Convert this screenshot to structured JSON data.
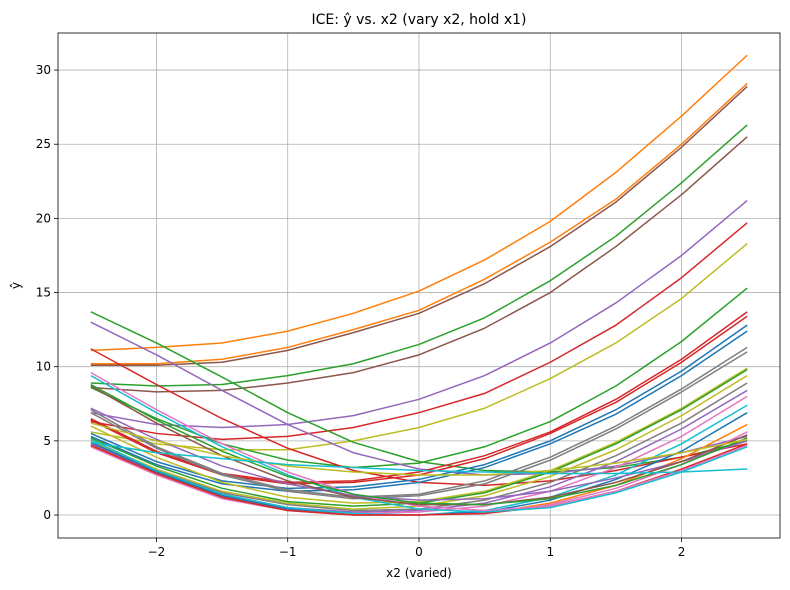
{
  "chart_data": {
    "type": "line",
    "title": "ICE: ŷ vs. x2 (vary x2, hold x1)",
    "xlabel": "x2 (varied)",
    "ylabel": "ŷ",
    "xlim": [
      -2.75,
      2.75
    ],
    "ylim": [
      -1.55,
      32.5
    ],
    "grid": true,
    "legend": "none",
    "xticks": [
      -2,
      -1,
      0,
      1,
      2
    ],
    "xtick_labels": [
      "−2",
      "−1",
      "0",
      "1",
      "2"
    ],
    "yticks": [
      0,
      5,
      10,
      15,
      20,
      25,
      30
    ],
    "ytick_labels": [
      "0",
      "5",
      "10",
      "15",
      "20",
      "25",
      "30"
    ],
    "x": [
      -2.5,
      -2.0,
      -1.5,
      -1.0,
      -0.5,
      0.0,
      0.5,
      1.0,
      1.5,
      2.0,
      2.5
    ],
    "series": [
      {
        "color": "#ff7f0e",
        "values": [
          11.1,
          11.3,
          11.6,
          12.4,
          13.6,
          15.1,
          17.2,
          19.8,
          23.1,
          26.9,
          31.0
        ]
      },
      {
        "color": "#ff7f0e",
        "values": [
          10.2,
          10.2,
          10.5,
          11.3,
          12.5,
          13.8,
          15.9,
          18.4,
          21.3,
          25.0,
          29.1
        ]
      },
      {
        "color": "#8c564b",
        "values": [
          10.1,
          10.1,
          10.3,
          11.1,
          12.3,
          13.6,
          15.6,
          18.1,
          21.1,
          24.8,
          28.9
        ]
      },
      {
        "color": "#2ca02c",
        "values": [
          8.9,
          8.7,
          8.8,
          9.4,
          10.2,
          11.5,
          13.3,
          15.8,
          18.8,
          22.4,
          26.3
        ]
      },
      {
        "color": "#8c564b",
        "values": [
          8.6,
          8.3,
          8.4,
          8.9,
          9.6,
          10.8,
          12.6,
          15.0,
          18.1,
          21.6,
          25.5
        ]
      },
      {
        "color": "#9467bd",
        "values": [
          6.9,
          6.1,
          5.9,
          6.1,
          6.7,
          7.8,
          9.4,
          11.6,
          14.3,
          17.5,
          21.2
        ]
      },
      {
        "color": "#d62728",
        "values": [
          6.3,
          5.5,
          5.1,
          5.3,
          5.9,
          6.9,
          8.2,
          10.3,
          12.8,
          16.0,
          19.7
        ]
      },
      {
        "color": "#bcbd22",
        "values": [
          5.6,
          4.8,
          4.4,
          4.4,
          5.0,
          5.9,
          7.2,
          9.2,
          11.6,
          14.6,
          18.3
        ]
      },
      {
        "color": "#2ca02c",
        "values": [
          8.6,
          6.5,
          4.8,
          3.7,
          3.2,
          3.5,
          4.6,
          6.3,
          8.7,
          11.7,
          15.3
        ]
      },
      {
        "color": "#2ca02c",
        "values": [
          13.7,
          11.6,
          9.3,
          6.9,
          4.9,
          3.6,
          3.0,
          2.9,
          3.2,
          3.9,
          5.0
        ]
      },
      {
        "color": "#9467bd",
        "values": [
          13.0,
          10.8,
          8.4,
          6.1,
          4.2,
          3.1,
          2.7,
          2.8,
          3.3,
          4.2,
          5.3
        ]
      },
      {
        "color": "#d62728",
        "values": [
          11.2,
          8.8,
          6.5,
          4.5,
          3.0,
          2.2,
          2.0,
          2.3,
          3.0,
          3.9,
          4.8
        ]
      },
      {
        "color": "#d62728",
        "values": [
          6.5,
          4.3,
          2.8,
          2.2,
          2.3,
          2.9,
          4.0,
          5.6,
          7.8,
          10.5,
          13.7
        ]
      },
      {
        "color": "#d62728",
        "values": [
          6.4,
          4.2,
          2.7,
          2.1,
          2.2,
          2.7,
          3.8,
          5.5,
          7.6,
          10.3,
          13.4
        ]
      },
      {
        "color": "#1f77b4",
        "values": [
          5.5,
          3.6,
          2.3,
          1.8,
          1.9,
          2.4,
          3.4,
          5.0,
          7.1,
          9.7,
          12.8
        ]
      },
      {
        "color": "#1f77b4",
        "values": [
          5.3,
          3.4,
          2.1,
          1.6,
          1.7,
          2.2,
          3.2,
          4.8,
          6.8,
          9.4,
          12.4
        ]
      },
      {
        "color": "#7f7f7f",
        "values": [
          7.1,
          4.6,
          2.8,
          1.7,
          1.2,
          1.4,
          2.3,
          3.9,
          6.0,
          8.5,
          11.3
        ]
      },
      {
        "color": "#7f7f7f",
        "values": [
          6.9,
          4.5,
          2.7,
          1.6,
          1.1,
          1.3,
          2.1,
          3.7,
          5.8,
          8.3,
          11.0
        ]
      },
      {
        "color": "#bcbd22",
        "values": [
          6.0,
          3.9,
          2.2,
          1.2,
          0.8,
          0.9,
          1.6,
          3.0,
          4.9,
          7.2,
          9.9
        ]
      },
      {
        "color": "#2ca02c",
        "values": [
          5.2,
          3.3,
          1.8,
          0.9,
          0.6,
          0.8,
          1.5,
          2.9,
          4.8,
          7.1,
          9.8
        ]
      },
      {
        "color": "#bcbd22",
        "values": [
          5.0,
          3.1,
          1.6,
          0.8,
          0.4,
          0.6,
          1.3,
          2.6,
          4.4,
          6.7,
          9.4
        ]
      },
      {
        "color": "#7f7f7f",
        "values": [
          4.9,
          3.0,
          1.5,
          0.7,
          0.3,
          0.4,
          1.0,
          2.2,
          4.0,
          6.2,
          8.9
        ]
      },
      {
        "color": "#9467bd",
        "values": [
          4.8,
          2.9,
          1.4,
          0.5,
          0.2,
          0.3,
          0.8,
          1.9,
          3.6,
          5.8,
          8.4
        ]
      },
      {
        "color": "#e377c2",
        "values": [
          4.7,
          2.8,
          1.3,
          0.4,
          0.1,
          0.2,
          0.6,
          1.6,
          3.2,
          5.3,
          8.0
        ]
      },
      {
        "color": "#17becf",
        "values": [
          5.1,
          3.0,
          1.4,
          0.5,
          0.1,
          0.0,
          0.3,
          1.2,
          2.7,
          4.8,
          7.4
        ]
      },
      {
        "color": "#1f77b4",
        "values": [
          4.9,
          2.9,
          1.3,
          0.4,
          0.0,
          0.0,
          0.2,
          1.0,
          2.4,
          4.3,
          6.9
        ]
      },
      {
        "color": "#ff7f0e",
        "values": [
          4.7,
          2.8,
          1.2,
          0.3,
          0.0,
          0.0,
          0.1,
          0.8,
          2.0,
          3.8,
          6.1
        ]
      },
      {
        "color": "#e377c2",
        "values": [
          4.6,
          2.7,
          1.1,
          0.3,
          0.0,
          0.0,
          0.1,
          0.7,
          1.8,
          3.4,
          5.6
        ]
      },
      {
        "color": "#d62728",
        "values": [
          4.7,
          2.8,
          1.2,
          0.3,
          0.0,
          0.0,
          0.1,
          0.6,
          1.6,
          3.1,
          4.8
        ]
      },
      {
        "color": "#e377c2",
        "values": [
          9.6,
          7.1,
          4.8,
          2.9,
          1.4,
          0.6,
          0.3,
          0.6,
          1.6,
          3.0,
          4.7
        ]
      },
      {
        "color": "#17becf",
        "values": [
          9.4,
          6.9,
          4.6,
          2.7,
          1.2,
          0.4,
          0.2,
          0.5,
          1.5,
          2.9,
          4.6
        ]
      },
      {
        "color": "#9467bd",
        "values": [
          7.2,
          5.1,
          3.3,
          2.1,
          1.3,
          1.0,
          1.1,
          1.6,
          2.5,
          3.6,
          5.0
        ]
      },
      {
        "color": "#8c564b",
        "values": [
          8.7,
          6.2,
          4.0,
          2.3,
          1.2,
          0.7,
          0.7,
          1.2,
          2.2,
          3.6,
          5.4
        ]
      },
      {
        "color": "#2ca02c",
        "values": [
          8.8,
          6.4,
          4.3,
          2.6,
          1.4,
          0.8,
          0.7,
          1.1,
          2.0,
          3.4,
          5.2
        ]
      },
      {
        "color": "#bcbd22",
        "values": [
          6.2,
          5.0,
          4.0,
          3.3,
          2.9,
          2.7,
          2.7,
          3.0,
          3.5,
          4.2,
          5.1
        ]
      },
      {
        "color": "#17becf",
        "values": [
          4.9,
          4.2,
          3.8,
          3.4,
          3.2,
          3.0,
          2.9,
          2.8,
          2.8,
          2.9,
          3.1
        ]
      }
    ]
  }
}
